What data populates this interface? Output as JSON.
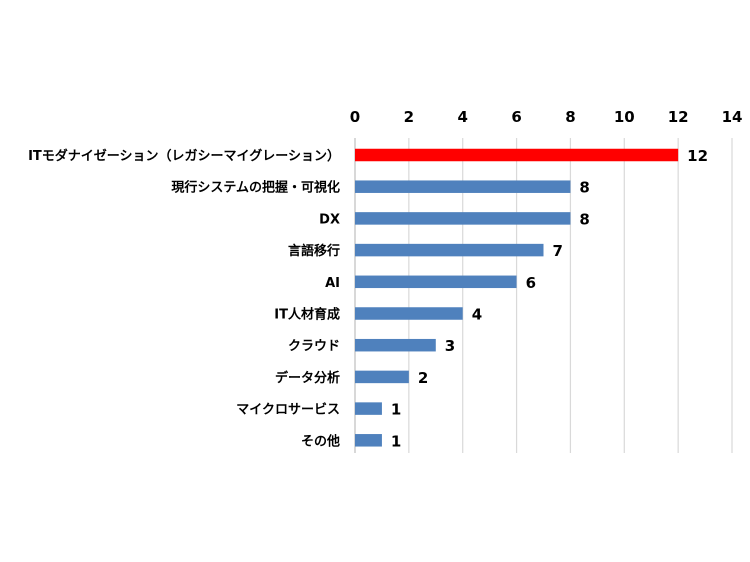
{
  "chart_data": {
    "type": "bar",
    "orientation": "horizontal",
    "title": "",
    "xlabel": "",
    "ylabel": "",
    "xlim": [
      0,
      14
    ],
    "ticks": [
      0,
      2,
      4,
      6,
      8,
      10,
      12,
      14
    ],
    "tick_labels": [
      "0",
      "2",
      "4",
      "6",
      "8",
      "10",
      "12",
      "14"
    ],
    "x_axis_position": "top",
    "grid": true,
    "legend": "none",
    "categories": [
      "ITモダナイゼーション（レガシーマイグレーション）",
      "現行システムの把握・可視化",
      "DX",
      "言語移行",
      "AI",
      "IT人材育成",
      "クラウド",
      "データ分析",
      "マイクロサービス",
      "その他"
    ],
    "values": [
      12,
      8,
      8,
      7,
      6,
      4,
      3,
      2,
      1,
      1
    ],
    "value_labels": [
      "12",
      "8",
      "8",
      "7",
      "6",
      "4",
      "3",
      "2",
      "1",
      "1"
    ],
    "bar_colors": [
      "#ff0000",
      "#4f81bd",
      "#4f81bd",
      "#4f81bd",
      "#4f81bd",
      "#4f81bd",
      "#4f81bd",
      "#4f81bd",
      "#4f81bd",
      "#4f81bd"
    ],
    "colors": {
      "highlight": "#ff0000",
      "default": "#4f81bd",
      "grid": "#d9d9d9"
    }
  }
}
